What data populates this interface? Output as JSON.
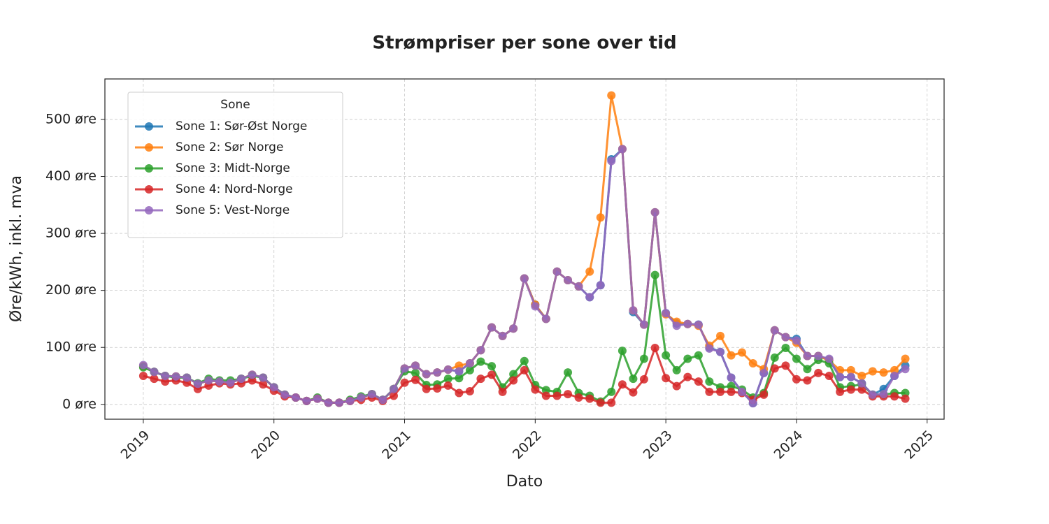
{
  "chart_data": {
    "type": "line",
    "title": "Strømpriser per sone over tid",
    "x_label": "Dato",
    "y_label": "Øre/kWh, inkl. mva",
    "legend_title": "Sone",
    "legend_position": "upper left",
    "grid": true,
    "x": [
      2019,
      2019.083,
      2019.167,
      2019.25,
      2019.333,
      2019.417,
      2019.5,
      2019.583,
      2019.667,
      2019.75,
      2019.833,
      2019.917,
      2020,
      2020.083,
      2020.167,
      2020.25,
      2020.333,
      2020.417,
      2020.5,
      2020.583,
      2020.667,
      2020.75,
      2020.833,
      2020.917,
      2021,
      2021.083,
      2021.167,
      2021.25,
      2021.333,
      2021.417,
      2021.5,
      2021.583,
      2021.667,
      2021.75,
      2021.833,
      2021.917,
      2022,
      2022.083,
      2022.167,
      2022.25,
      2022.333,
      2022.417,
      2022.5,
      2022.583,
      2022.667,
      2022.75,
      2022.833,
      2022.917,
      2023,
      2023.083,
      2023.167,
      2023.25,
      2023.333,
      2023.417,
      2023.5,
      2023.583,
      2023.667,
      2023.75,
      2023.833,
      2023.917,
      2024,
      2024.083,
      2024.167,
      2024.25,
      2024.333,
      2024.417,
      2024.5,
      2024.583,
      2024.667,
      2024.75,
      2024.833
    ],
    "xlim": [
      2018.706,
      2025.13
    ],
    "xticks": [
      2019,
      2020,
      2021,
      2022,
      2023,
      2024,
      2025
    ],
    "ylim": [
      -26,
      571
    ],
    "yticks": [
      {
        "value": 0,
        "label": "0 øre"
      },
      {
        "value": 100,
        "label": "100 øre"
      },
      {
        "value": 200,
        "label": "200 øre"
      },
      {
        "value": 300,
        "label": "300 øre"
      },
      {
        "value": 400,
        "label": "400 øre"
      },
      {
        "value": 500,
        "label": "500 øre"
      }
    ],
    "series": [
      {
        "name": "Sone 1: Sør-Øst Norge",
        "color": "#1f77b4",
        "values": [
          67,
          57,
          50,
          49,
          47,
          36,
          42,
          40,
          38,
          45,
          52,
          47,
          30,
          17,
          12,
          6,
          10,
          3,
          3,
          6,
          12,
          18,
          8,
          27,
          63,
          68,
          53,
          56,
          61,
          58,
          72,
          95,
          135,
          120,
          133,
          221,
          175,
          150,
          233,
          218,
          207,
          188,
          209,
          430,
          448,
          162,
          140,
          337,
          160,
          142,
          141,
          140,
          100,
          92,
          47,
          22,
          2,
          55,
          130,
          118,
          115,
          85,
          85,
          78,
          48,
          48,
          37,
          17,
          27,
          50,
          68
        ]
      },
      {
        "name": "Sone 2: Sør Norge",
        "color": "#ff7f0e",
        "values": [
          67,
          57,
          50,
          49,
          47,
          36,
          42,
          40,
          38,
          45,
          52,
          47,
          30,
          17,
          12,
          6,
          10,
          3,
          3,
          6,
          12,
          18,
          8,
          27,
          63,
          68,
          53,
          56,
          61,
          68,
          72,
          95,
          135,
          120,
          133,
          221,
          175,
          150,
          233,
          218,
          207,
          233,
          328,
          542,
          448,
          165,
          140,
          337,
          158,
          145,
          141,
          138,
          103,
          120,
          86,
          91,
          72,
          62,
          130,
          118,
          108,
          85,
          85,
          77,
          60,
          60,
          50,
          58,
          56,
          60,
          80
        ]
      },
      {
        "name": "Sone 3: Midt-Norge",
        "color": "#2ca02c",
        "values": [
          65,
          57,
          50,
          47,
          47,
          37,
          45,
          42,
          42,
          45,
          50,
          47,
          30,
          17,
          12,
          6,
          12,
          3,
          3,
          8,
          14,
          18,
          8,
          27,
          58,
          55,
          34,
          35,
          45,
          46,
          60,
          75,
          67,
          30,
          53,
          76,
          34,
          25,
          22,
          56,
          20,
          15,
          5,
          22,
          94,
          45,
          80,
          227,
          86,
          60,
          80,
          86,
          40,
          30,
          32,
          26,
          12,
          20,
          82,
          99,
          80,
          62,
          78,
          72,
          30,
          32,
          35,
          17,
          17,
          20,
          20
        ]
      },
      {
        "name": "Sone 4: Nord-Norge",
        "color": "#d62728",
        "values": [
          50,
          45,
          40,
          42,
          38,
          27,
          33,
          37,
          35,
          37,
          42,
          35,
          24,
          14,
          12,
          6,
          10,
          3,
          3,
          6,
          8,
          12,
          6,
          15,
          38,
          43,
          27,
          28,
          33,
          20,
          23,
          45,
          52,
          22,
          42,
          60,
          26,
          15,
          15,
          18,
          12,
          10,
          3,
          3,
          35,
          21,
          44,
          99,
          46,
          32,
          48,
          40,
          22,
          22,
          22,
          20,
          8,
          17,
          63,
          68,
          44,
          42,
          55,
          50,
          22,
          26,
          26,
          14,
          14,
          14,
          10
        ]
      },
      {
        "name": "Sone 5: Vest-Norge",
        "color": "#9467bd",
        "values": [
          69,
          57,
          50,
          49,
          47,
          36,
          42,
          40,
          38,
          45,
          52,
          47,
          30,
          17,
          12,
          6,
          10,
          3,
          3,
          6,
          12,
          18,
          8,
          27,
          63,
          68,
          53,
          56,
          61,
          58,
          72,
          95,
          135,
          120,
          133,
          221,
          172,
          150,
          233,
          218,
          207,
          188,
          209,
          427,
          448,
          165,
          140,
          337,
          160,
          138,
          141,
          140,
          98,
          92,
          47,
          22,
          2,
          55,
          130,
          118,
          112,
          85,
          85,
          80,
          48,
          48,
          37,
          17,
          18,
          50,
          62
        ]
      }
    ]
  }
}
